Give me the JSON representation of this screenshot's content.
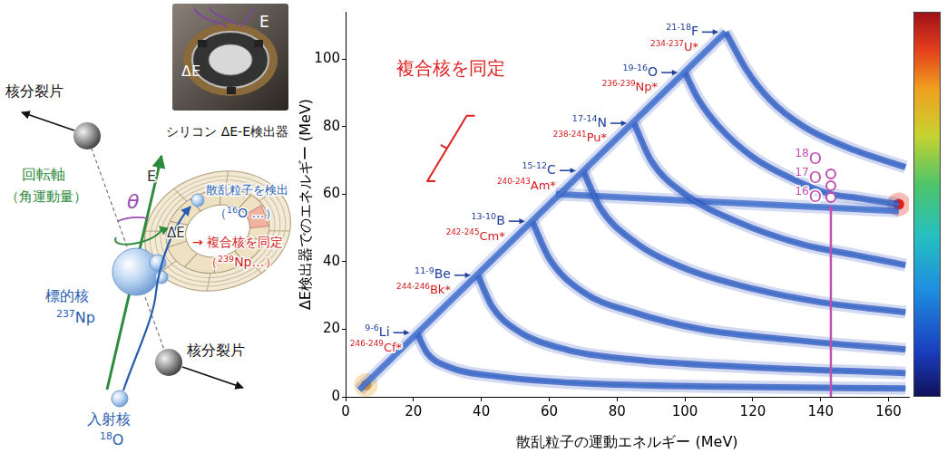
{
  "diagram": {
    "fission_fragment_top": "核分裂片",
    "fission_fragment_bottom": "核分裂片",
    "rotation_axis": "回転軸",
    "angular_momentum": "（角運動量）",
    "angle": "θ",
    "target_label": "標的核",
    "target_nucleus": "237Np",
    "projectile_label": "入射核",
    "projectile_nucleus": "18O",
    "detector_E": "E",
    "detector_dE": "ΔE",
    "photo_E": "E",
    "photo_dE": "ΔE",
    "detector_caption": "シリコン ΔE-E検出器",
    "detect_scattered": "散乱粒子を検出",
    "scattered_example": "（16O …）",
    "identify_compound": "→ 複合核を同定",
    "compound_example": "（239Np…）"
  },
  "chart_data": {
    "type": "scatter",
    "annotation": "複合核を同定",
    "x_label": "散乱粒子の運動エネルギー (MeV)",
    "y_label": "ΔE検出器でのエネルギー (MeV)",
    "xlim": [
      0,
      166
    ],
    "xticks": [
      0,
      20,
      40,
      60,
      80,
      100,
      120,
      140,
      160
    ],
    "ylim": [
      0,
      114
    ],
    "yticks": [
      0,
      20,
      40,
      60,
      80,
      100
    ],
    "grid": false,
    "series": [
      {
        "x": [
          4,
          112
        ],
        "values": [
          2,
          108
        ],
        "color": "#3a62c8",
        "line_style": "solid",
        "marker": "none"
      },
      {
        "label": "21-18F",
        "compound": "234-237U*",
        "x": [
          112,
          118,
          125,
          135,
          150,
          165
        ],
        "values": [
          108,
          97,
          88,
          80,
          73,
          68
        ],
        "color": "#2f55c0",
        "line_style": "solid",
        "marker": "none"
      },
      {
        "label": "19-16O",
        "compound": "236-239Np*",
        "x": [
          100,
          104,
          110,
          120,
          135,
          143,
          150,
          163
        ],
        "values": [
          96,
          88,
          80,
          71,
          63,
          60,
          59,
          57
        ],
        "color": "#2f55c0",
        "line_style": "solid",
        "marker": "none"
      },
      {
        "label": "17-14N",
        "compound": "238-241Pu*",
        "x": [
          85,
          90,
          100,
          115,
          135,
          150,
          165
        ],
        "values": [
          81,
          70,
          60,
          52,
          45,
          42,
          39
        ],
        "color": "#2f55c0",
        "line_style": "solid",
        "marker": "none"
      },
      {
        "label": "15-12C",
        "compound": "240-243Am*",
        "x": [
          70,
          75,
          85,
          100,
          120,
          140,
          165
        ],
        "values": [
          67,
          56,
          46,
          38,
          32,
          28,
          25
        ],
        "color": "#2f55c0",
        "line_style": "solid",
        "marker": "none"
      },
      {
        "label": "13-10B",
        "compound": "242-245Cm*",
        "x": [
          55,
          60,
          70,
          85,
          105,
          130,
          165
        ],
        "values": [
          52,
          41,
          31,
          25,
          20,
          17,
          14
        ],
        "color": "#2f55c0",
        "line_style": "solid",
        "marker": "none"
      },
      {
        "label": "11-9Be",
        "compound": "244-246Bk*",
        "x": [
          39,
          43,
          50,
          65,
          85,
          115,
          165
        ],
        "values": [
          36,
          27,
          20,
          14,
          11,
          9,
          7
        ],
        "color": "#2f55c0",
        "line_style": "solid",
        "marker": "none"
      },
      {
        "label": "9-6Li",
        "compound": "246-249Cf*",
        "x": [
          21,
          24,
          30,
          45,
          70,
          110,
          165
        ],
        "values": [
          19,
          13,
          9,
          6,
          4,
          3,
          2.5
        ],
        "color": "#2f55c0",
        "line_style": "solid",
        "marker": "none"
      },
      {
        "x": [
          62,
          163
        ],
        "values": [
          60,
          55
        ],
        "color": "#3a62c8",
        "line_style": "solid",
        "marker": "none"
      },
      {
        "x": [
          6
        ],
        "values": [
          3.5
        ],
        "color": "#f0a020",
        "line_style": "none",
        "marker": "circle"
      },
      {
        "x": [
          163
        ],
        "values": [
          57
        ],
        "color": "#e02010",
        "line_style": "none",
        "marker": "circle"
      }
    ],
    "markers": {
      "x": 143,
      "values": [
        66,
        62.5,
        59
      ],
      "labels": [
        "18O",
        "17O",
        "16O"
      ],
      "color": "#c050b0"
    }
  }
}
